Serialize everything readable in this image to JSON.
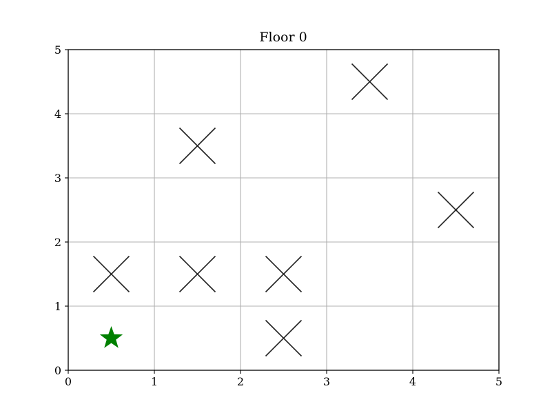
{
  "chart_data": {
    "type": "scatter",
    "title": "Floor 0",
    "xlabel": "",
    "ylabel": "",
    "xlim": [
      0,
      5
    ],
    "ylim": [
      0,
      5
    ],
    "xticks": [
      "0",
      "1",
      "2",
      "3",
      "4",
      "5"
    ],
    "yticks": [
      "0",
      "1",
      "2",
      "3",
      "4",
      "5"
    ],
    "grid": true,
    "series": [
      {
        "marker": "x",
        "color": "#222222",
        "points": [
          {
            "x": 0.5,
            "y": 1.5
          },
          {
            "x": 1.5,
            "y": 1.5
          },
          {
            "x": 1.5,
            "y": 3.5
          },
          {
            "x": 2.5,
            "y": 0.5
          },
          {
            "x": 2.5,
            "y": 1.5
          },
          {
            "x": 3.5,
            "y": 4.5
          },
          {
            "x": 4.5,
            "y": 2.5
          }
        ]
      },
      {
        "marker": "star",
        "color": "#008000",
        "points": [
          {
            "x": 0.5,
            "y": 0.5
          }
        ]
      }
    ]
  }
}
